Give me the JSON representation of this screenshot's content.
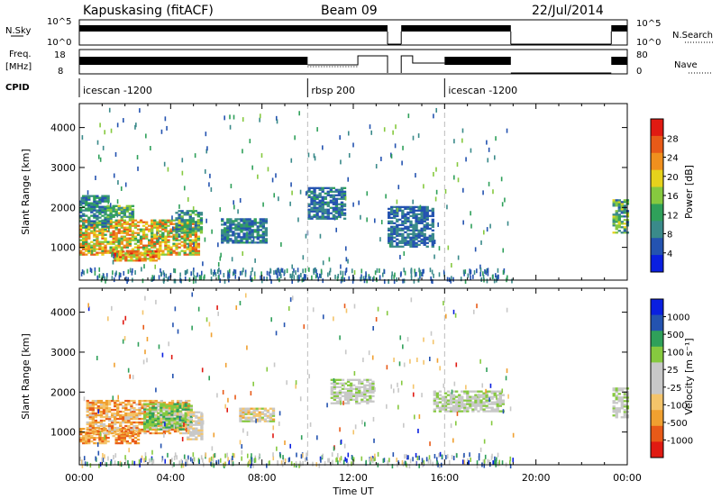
{
  "header": {
    "station": "Kapuskasing (fitACF)",
    "beam": "Beam 09",
    "date": "22/Jul/2014"
  },
  "panels": {
    "nsky_label": "N.Sky",
    "nsky_ticks": [
      "10^5",
      "10^0"
    ],
    "nsearch_label": "N.Search",
    "freq_label": "Freq.",
    "freq_unit": "[MHz]",
    "freq_ticks": [
      "18",
      "8"
    ],
    "nave_ticks": [
      "80",
      "0"
    ],
    "nave_label": "Nave",
    "cpid_label": "CPID"
  },
  "cpid_segments": [
    {
      "start_h": 0,
      "end_h": 10,
      "label": "icescan -1200"
    },
    {
      "start_h": 10,
      "end_h": 16,
      "label": "rbsp 200"
    },
    {
      "start_h": 16,
      "end_h": 24,
      "label": "icescan -1200"
    }
  ],
  "colors": {
    "power": [
      "#0a1fe0",
      "#2453b0",
      "#3a8a8a",
      "#2fa05a",
      "#86c93f",
      "#e6d21c",
      "#f0901e",
      "#e85a18",
      "#e01a12"
    ],
    "velocity": [
      "#e01a12",
      "#e85a18",
      "#f0a030",
      "#f4c46a",
      "#c8c8c8",
      "#c8c8c8",
      "#86c93f",
      "#2fa05a",
      "#2453b0",
      "#0a1fe0"
    ]
  },
  "chart_data": [
    {
      "type": "heatmap",
      "name": "power",
      "x": {
        "label": "Time UT",
        "range_h": [
          0,
          24
        ],
        "ticks": [
          "00:00",
          "04:00",
          "08:00",
          "12:00",
          "16:00",
          "20:00",
          "00:00"
        ]
      },
      "y": {
        "label": "Slant Range [km]",
        "range": [
          180,
          4600
        ],
        "ticks": [
          1000,
          2000,
          3000,
          4000
        ]
      },
      "colorbar": {
        "label": "Power [dB]",
        "range": [
          0,
          32
        ],
        "ticks": [
          "4",
          "8",
          "12",
          "16",
          "20",
          "24",
          "28"
        ]
      },
      "regions": [
        {
          "t": [
            0.0,
            5.2
          ],
          "r": [
            800,
            1700
          ],
          "v": [
            12,
            28
          ]
        },
        {
          "t": [
            0.0,
            1.3
          ],
          "r": [
            1500,
            2300
          ],
          "v": [
            4,
            14
          ]
        },
        {
          "t": [
            1.2,
            2.3
          ],
          "r": [
            1700,
            2050
          ],
          "v": [
            8,
            18
          ]
        },
        {
          "t": [
            4.2,
            5.3
          ],
          "r": [
            1350,
            1900
          ],
          "v": [
            6,
            16
          ]
        },
        {
          "t": [
            1.5,
            3.5
          ],
          "r": [
            650,
            900
          ],
          "v": [
            16,
            30
          ]
        },
        {
          "t": [
            6.2,
            8.2
          ],
          "r": [
            1100,
            1700
          ],
          "v": [
            4,
            12
          ]
        },
        {
          "t": [
            10.0,
            11.6
          ],
          "r": [
            1700,
            2500
          ],
          "v": [
            4,
            12
          ]
        },
        {
          "t": [
            13.5,
            15.5
          ],
          "r": [
            1000,
            2000
          ],
          "v": [
            4,
            10
          ]
        },
        {
          "t": [
            23.35,
            24.0
          ],
          "r": [
            1350,
            2200
          ],
          "v": [
            6,
            20
          ]
        }
      ],
      "scatter": [
        {
          "t": [
            0.0,
            19.0
          ],
          "r": [
            300,
            4500
          ],
          "n": 240,
          "v": [
            4,
            16
          ]
        },
        {
          "t": [
            0.0,
            19.0
          ],
          "r": [
            200,
            500
          ],
          "n": 320,
          "v": [
            4,
            12
          ]
        }
      ]
    },
    {
      "type": "heatmap",
      "name": "velocity",
      "x": {
        "label": "Time UT",
        "range_h": [
          0,
          24
        ],
        "ticks": [
          "00:00",
          "04:00",
          "08:00",
          "12:00",
          "16:00",
          "20:00",
          "00:00"
        ]
      },
      "y": {
        "label": "Slant Range [km]",
        "range": [
          180,
          4600
        ],
        "ticks": [
          1000,
          2000,
          3000,
          4000
        ]
      },
      "colorbar": {
        "label": "Velocity [m s⁻¹]",
        "ticks": [
          "-1000",
          "-500",
          "-100",
          "-25",
          "25",
          "100",
          "500",
          "1000"
        ]
      },
      "regions": [
        {
          "t": [
            0.0,
            2.6
          ],
          "r": [
            700,
            1100
          ],
          "v": [
            1,
            3
          ]
        },
        {
          "t": [
            0.3,
            4.8
          ],
          "r": [
            950,
            1800
          ],
          "v": [
            1,
            4
          ]
        },
        {
          "t": [
            2.8,
            4.9
          ],
          "r": [
            1050,
            1700
          ],
          "v": [
            5,
            7
          ]
        },
        {
          "t": [
            4.7,
            5.4
          ],
          "r": [
            800,
            1500
          ],
          "v": [
            3,
            5
          ]
        },
        {
          "t": [
            7.0,
            8.5
          ],
          "r": [
            1250,
            1600
          ],
          "v": [
            2,
            6
          ]
        },
        {
          "t": [
            11.0,
            12.8
          ],
          "r": [
            1700,
            2300
          ],
          "v": [
            4,
            6
          ]
        },
        {
          "t": [
            15.5,
            18.6
          ],
          "r": [
            1500,
            2000
          ],
          "v": [
            4,
            6
          ]
        },
        {
          "t": [
            23.35,
            24.0
          ],
          "r": [
            1350,
            2100
          ],
          "v": [
            4,
            6
          ]
        }
      ],
      "scatter": [
        {
          "t": [
            0.0,
            19.0
          ],
          "r": [
            300,
            4500
          ],
          "n": 220,
          "v": [
            0,
            9
          ]
        },
        {
          "t": [
            0.0,
            19.0
          ],
          "r": [
            200,
            500
          ],
          "n": 300,
          "v": [
            3,
            9
          ]
        }
      ]
    }
  ]
}
